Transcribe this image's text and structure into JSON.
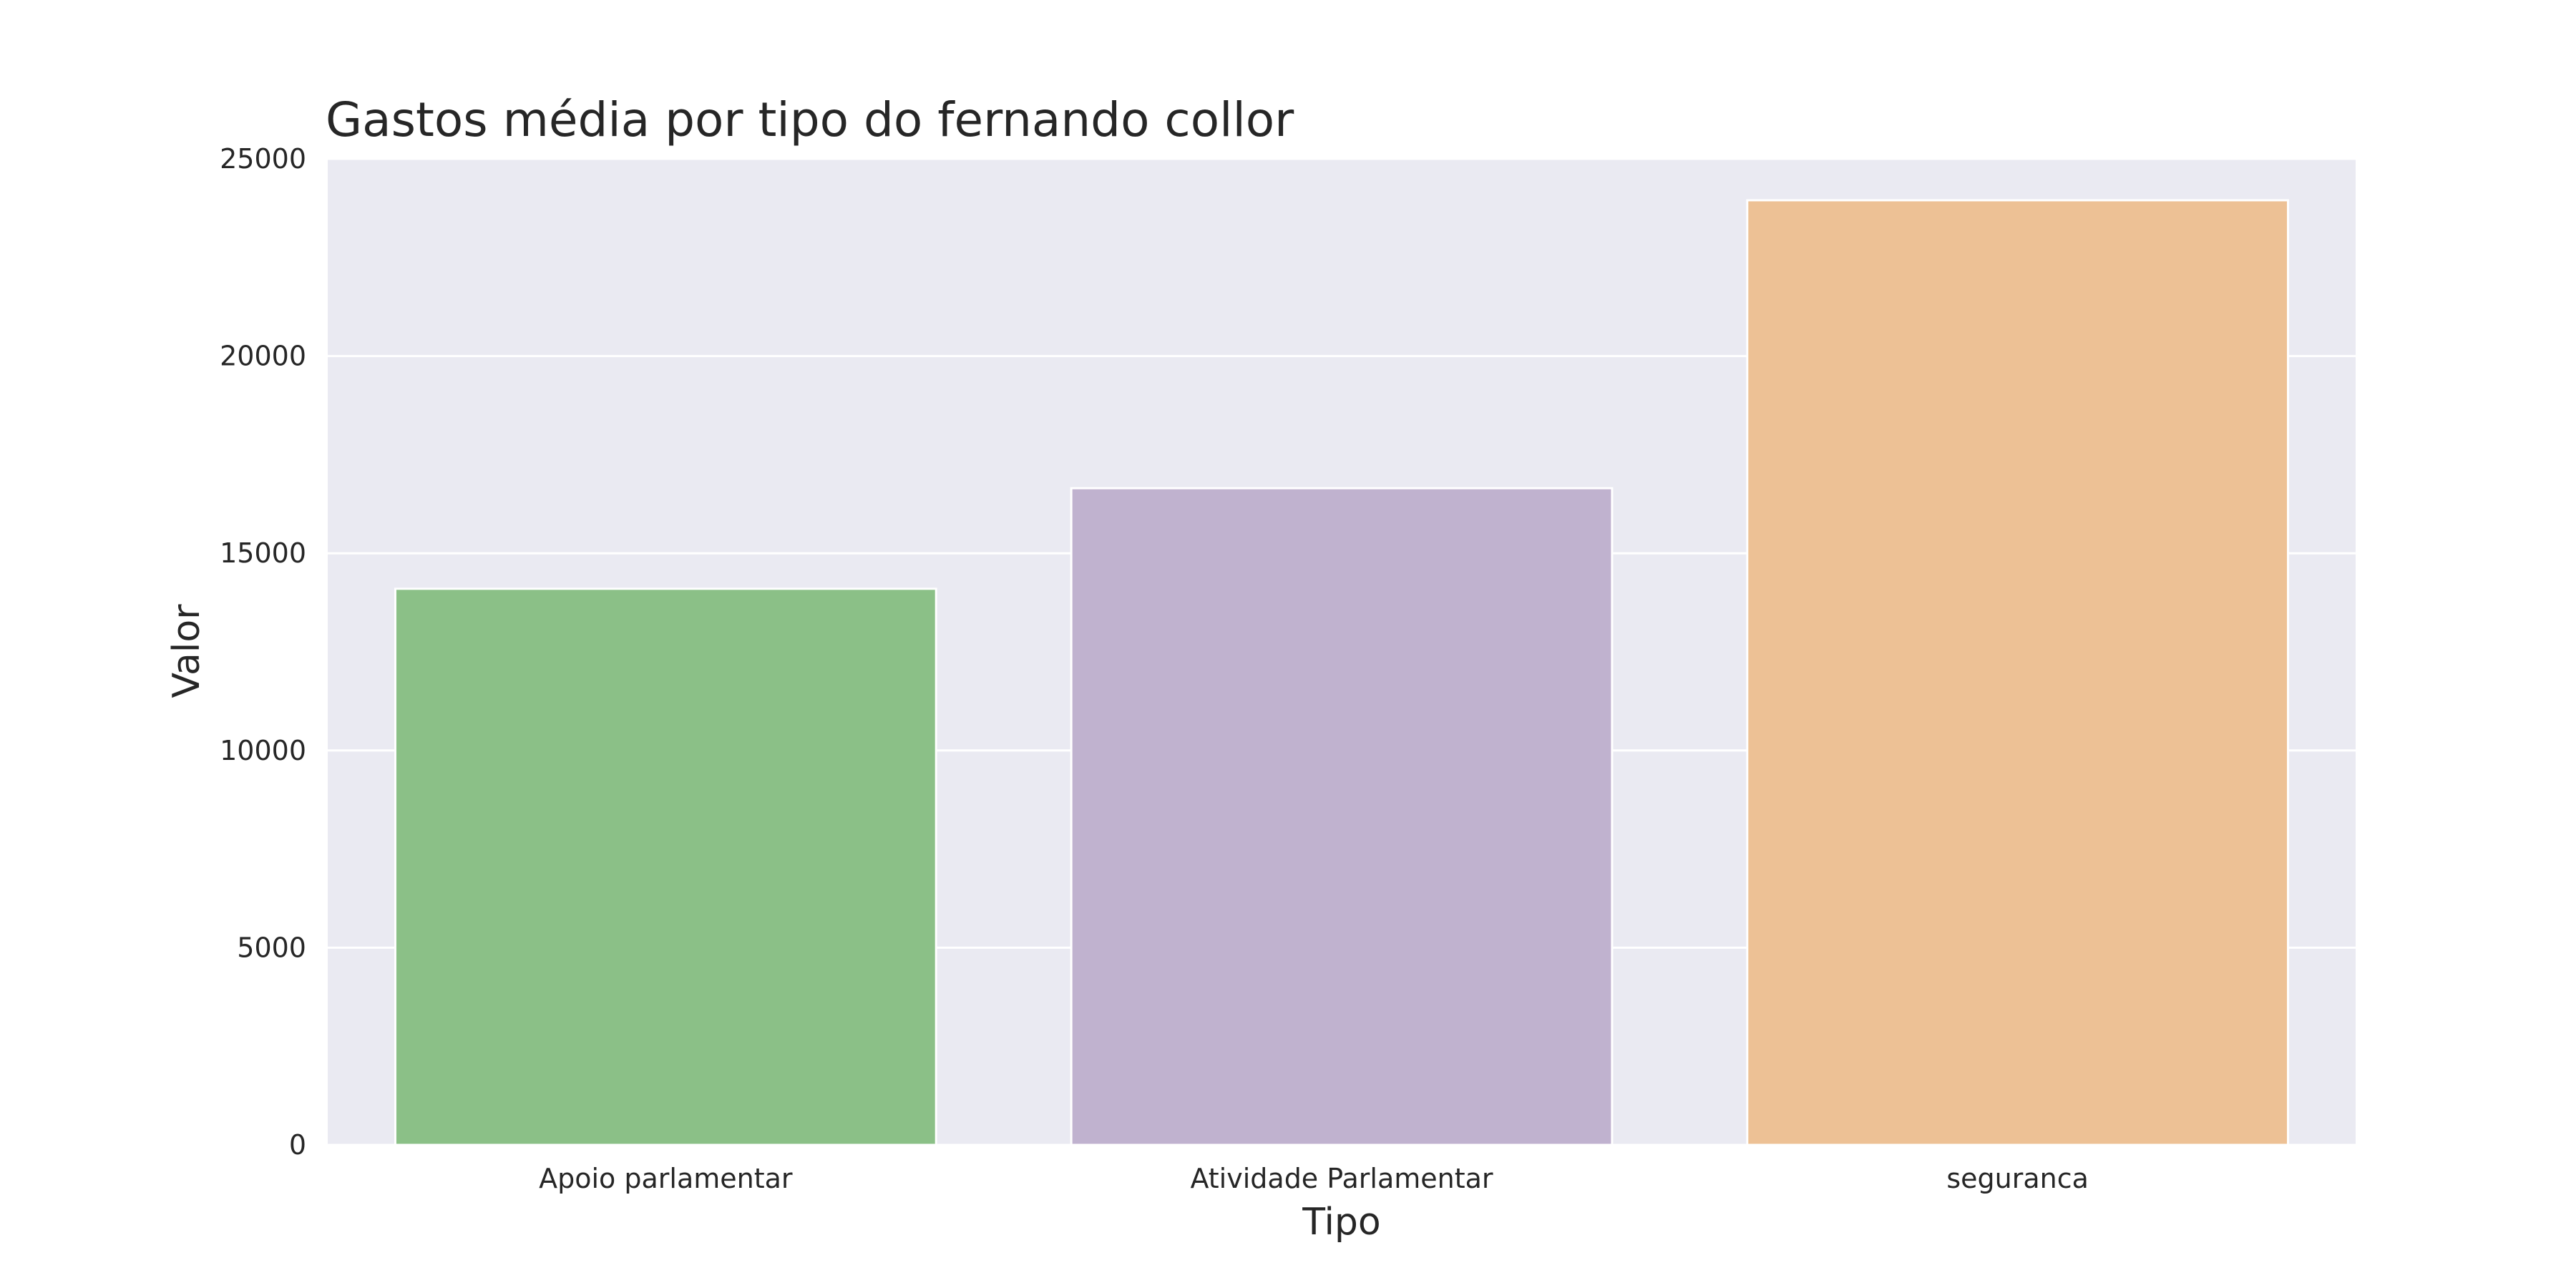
{
  "chart_data": {
    "type": "bar",
    "title": "Gastos média por tipo do fernando collor",
    "xlabel": "Tipo",
    "ylabel": "Valor",
    "categories": [
      "Apoio parlamentar",
      "Atividade Parlamentar",
      "seguranca"
    ],
    "values": [
      14100,
      16650,
      23950
    ],
    "colors": [
      "#8bc087",
      "#c0b2cf",
      "#edc195"
    ],
    "ylim": [
      0,
      25000
    ],
    "yticks": [
      0,
      5000,
      10000,
      15000,
      20000,
      25000
    ],
    "grid": true,
    "legend": "none",
    "background": "#eaeaf2"
  }
}
